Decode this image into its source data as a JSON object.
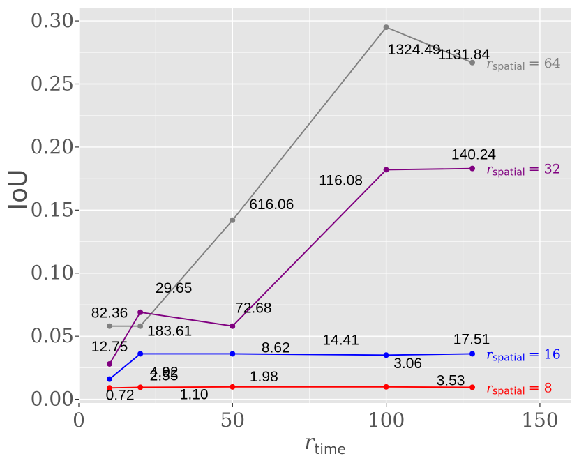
{
  "chart_data": {
    "type": "line",
    "x": [
      10,
      20,
      50,
      100,
      128
    ],
    "xlim": [
      0,
      160
    ],
    "ylim": [
      -0.003,
      0.31
    ],
    "xticks": [
      0,
      50,
      100,
      150
    ],
    "xtick_labels": [
      "0",
      "50",
      "100",
      "150"
    ],
    "yticks": [
      0,
      0.05,
      0.1,
      0.15,
      0.2,
      0.25,
      0.3
    ],
    "ytick_labels": [
      "0.00",
      "0.05",
      "0.10",
      "0.15",
      "0.20",
      "0.25",
      "0.30"
    ],
    "xlabel": {
      "main": "r",
      "sub": "time"
    },
    "ylabel": "IoU",
    "grid": true,
    "background": "#e5e5e5",
    "grid_color": "#ffffff",
    "series": [
      {
        "name": "r_spatial = 64",
        "label_main": "r",
        "label_sub": "spatial",
        "label_eq": "= 64",
        "color": "#808080",
        "values": [
          0.058,
          0.058,
          0.142,
          0.295,
          0.267
        ],
        "point_labels": [
          "82.36",
          "183.61",
          "616.06",
          "1324.49",
          "1131.84"
        ]
      },
      {
        "name": "r_spatial = 32",
        "label_main": "r",
        "label_sub": "spatial",
        "label_eq": "= 32",
        "color": "#800080",
        "values": [
          0.028,
          0.069,
          0.058,
          0.182,
          0.183
        ],
        "point_labels": [
          "12.75",
          "29.65",
          "72.68",
          "116.08",
          "140.24"
        ]
      },
      {
        "name": "r_spatial = 16",
        "label_main": "r",
        "label_sub": "spatial",
        "label_eq": "= 16",
        "color": "#0000ff",
        "values": [
          0.016,
          0.036,
          0.036,
          0.035,
          0.036
        ],
        "point_labels": [
          "2.55",
          "4.92",
          "8.62",
          "14.41",
          "17.51"
        ]
      },
      {
        "name": "r_spatial = 8",
        "label_main": "r",
        "label_sub": "spatial",
        "label_eq": "= 8",
        "color": "#ff0000",
        "values": [
          0.009,
          0.0095,
          0.0098,
          0.0098,
          0.0095
        ],
        "point_labels": [
          "0.72",
          "1.10",
          "1.98",
          "3.06",
          "3.53"
        ]
      }
    ]
  }
}
